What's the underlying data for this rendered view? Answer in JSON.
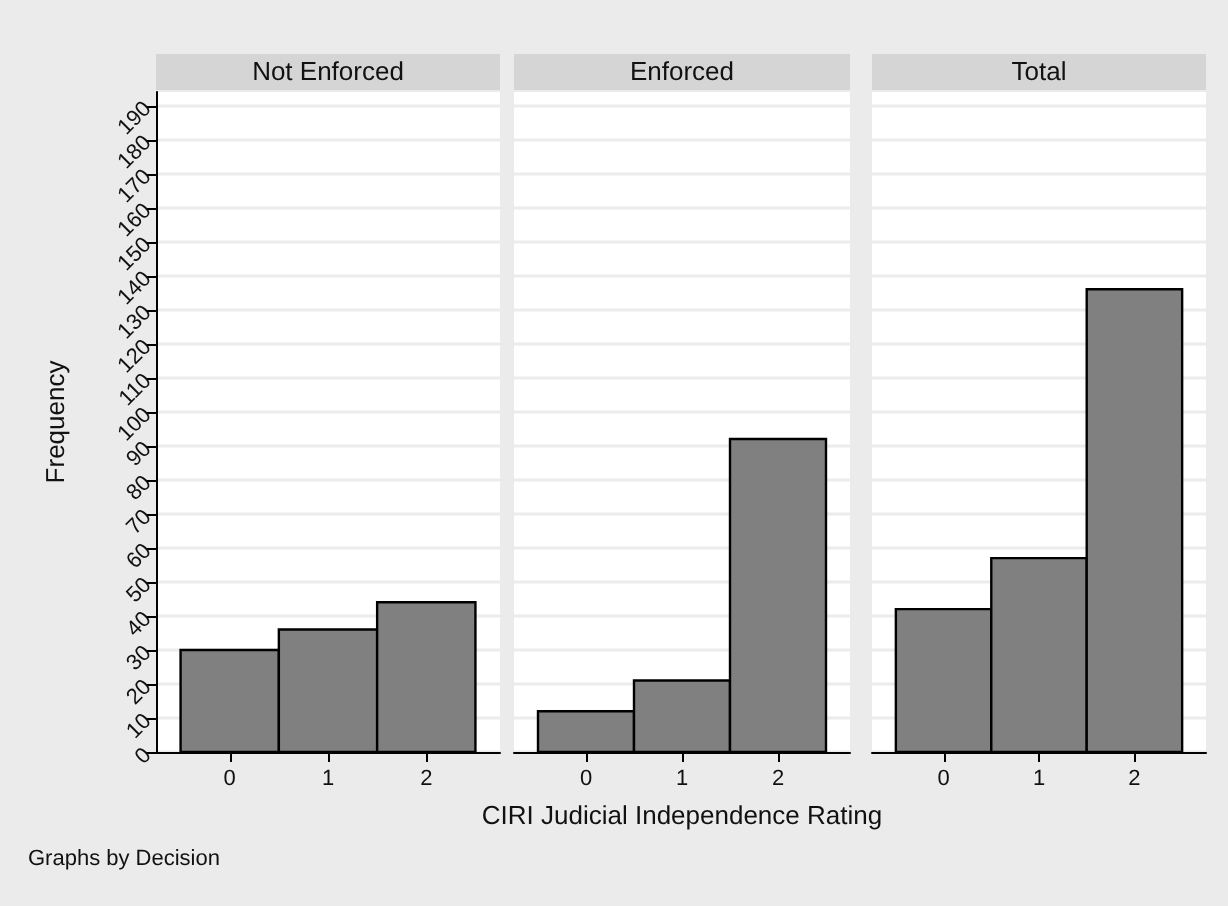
{
  "chart_data": [
    {
      "type": "histogram",
      "title": "Not Enforced",
      "ylabel": "Frequency",
      "bins": [
        -0.5,
        0.5,
        1.5,
        2.5
      ],
      "values": [
        30,
        36,
        44
      ],
      "color": "#808080",
      "xlim": [
        -0.75,
        2.75
      ],
      "xticks": [
        0,
        1,
        2
      ],
      "ylim": [
        0,
        194
      ],
      "yticks": [
        0,
        10,
        20,
        30,
        40,
        50,
        60,
        70,
        80,
        90,
        100,
        110,
        120,
        130,
        140,
        150,
        160,
        170,
        180,
        190
      ],
      "grid": "y",
      "annotations": [
        "Graphs by Decision"
      ]
    },
    {
      "type": "histogram",
      "title": "Enforced",
      "xlabel": "CIRI Judicial Independence Rating",
      "bins": [
        -0.5,
        0.5,
        1.5,
        2.5
      ],
      "values": [
        12,
        21,
        92
      ],
      "color": "#808080",
      "xlim": [
        -0.75,
        2.75
      ],
      "xticks": [
        0,
        1,
        2
      ],
      "ylim": [
        0,
        194
      ],
      "yticks": [
        0,
        10,
        20,
        30,
        40,
        50,
        60,
        70,
        80,
        90,
        100,
        110,
        120,
        130,
        140,
        150,
        160,
        170,
        180,
        190
      ],
      "grid": "y",
      "tick_labels": "x"
    },
    {
      "type": "histogram",
      "title": "Total",
      "bins": [
        -0.5,
        0.5,
        1.5,
        2.5
      ],
      "values": [
        42,
        57,
        136
      ],
      "color": "#808080",
      "xlim": [
        -0.75,
        2.75
      ],
      "xticks": [
        0,
        1,
        2
      ],
      "ylim": [
        0,
        194
      ],
      "yticks": [
        0,
        10,
        20,
        30,
        40,
        50,
        60,
        70,
        80,
        90,
        100,
        110,
        120,
        130,
        140,
        150,
        160,
        170,
        180,
        190
      ],
      "grid": "y",
      "tick_labels": "x"
    }
  ]
}
